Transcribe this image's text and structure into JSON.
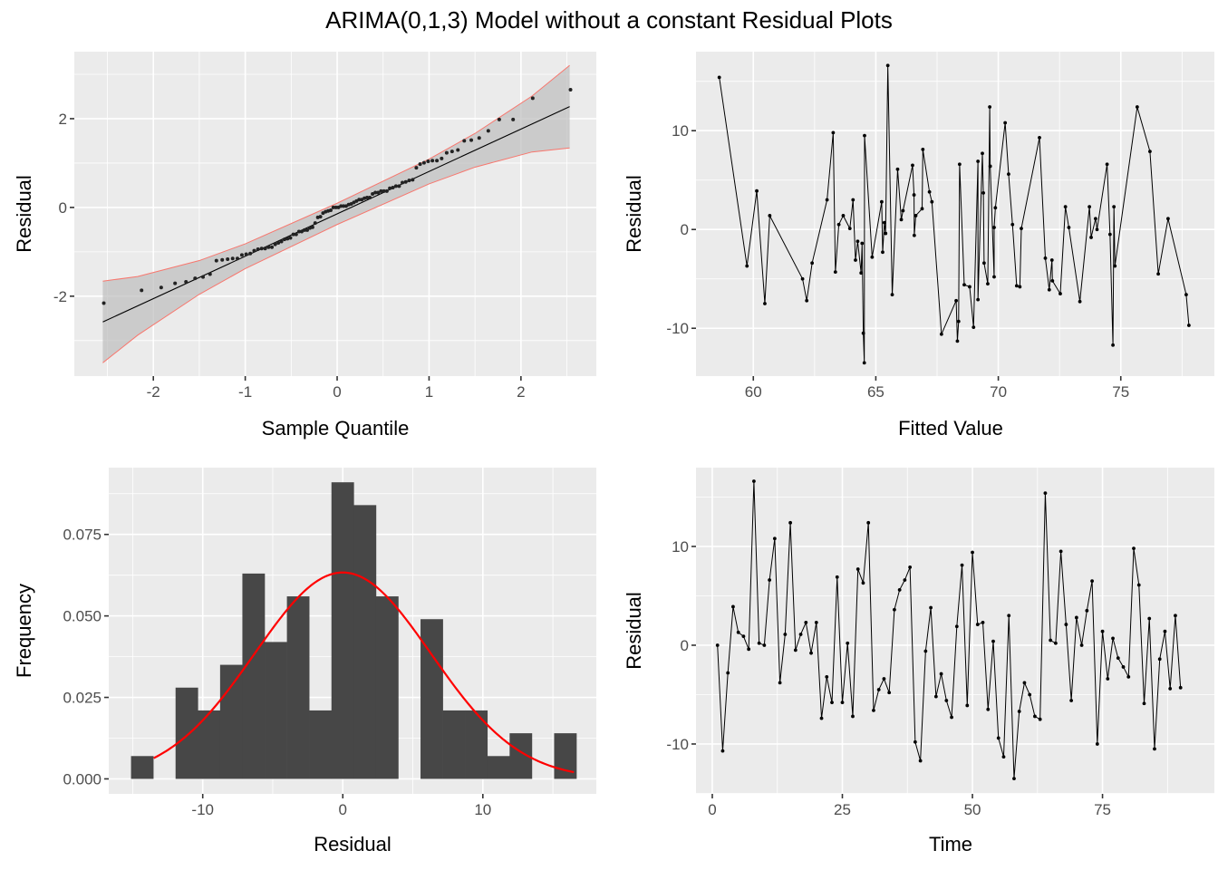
{
  "title": "ARIMA(0,1,3) Model without a constant Residual Plots",
  "chart_data": [
    {
      "id": "qq",
      "type": "scatter",
      "subtype": "qq-plot",
      "xlabel": "Sample Quantile",
      "ylabel": "Residual",
      "xlim": [
        -2.86,
        2.82
      ],
      "ylim": [
        -3.8,
        3.51
      ],
      "xticks": [
        -2,
        -1,
        0,
        1,
        2
      ],
      "xtick_labels": [
        "-2",
        "-1",
        "0",
        "1",
        "2"
      ],
      "yticks": [
        -2,
        0,
        2
      ],
      "ytick_labels": [
        "-2",
        "0",
        "2"
      ],
      "grid": true,
      "points_source": "standardized residuals vs normal theoretical quantiles",
      "standardize_mean": 0.0,
      "standardize_sd": 6.26,
      "reference_line": {
        "slope": 0.955,
        "intercept": -0.145,
        "x_range": [
          -2.55,
          2.53
        ],
        "color": "#000000"
      },
      "confidence_band": {
        "x": [
          -2.55,
          -2.17,
          -1.5,
          -1.0,
          0.0,
          1.0,
          1.5,
          2.12,
          2.53
        ],
        "half_width": [
          0.92,
          0.66,
          0.38,
          0.28,
          0.24,
          0.28,
          0.38,
          0.63,
          0.93
        ],
        "fill": "#bdbdbd",
        "edge_color": "#f8766d"
      }
    },
    {
      "id": "fitted",
      "type": "line",
      "xlabel": "Fitted Value",
      "ylabel": "Residual",
      "xlim": [
        57.66,
        78.82
      ],
      "ylim": [
        -14.84,
        18.0
      ],
      "xticks": [
        60,
        65,
        70,
        75
      ],
      "xtick_labels": [
        "60",
        "65",
        "70",
        "75"
      ],
      "yticks": [
        -10,
        0,
        10
      ],
      "ytick_labels": [
        "-10",
        "0",
        "10"
      ],
      "grid": true,
      "x": [
        58.61,
        59.74,
        60.14,
        60.47,
        60.67,
        62.01,
        62.18,
        62.4,
        63.01,
        63.26,
        63.35,
        63.49,
        63.67,
        63.94,
        64.07,
        64.17,
        64.26,
        64.4,
        64.44,
        64.49,
        64.53,
        64.54,
        64.85,
        65.24,
        65.28,
        65.35,
        65.4,
        65.49,
        65.67,
        65.89,
        66.04,
        66.11,
        66.5,
        66.56,
        66.57,
        66.63,
        66.89,
        66.92,
        67.19,
        67.29,
        67.68,
        68.28,
        68.33,
        68.38,
        68.42,
        68.61,
        68.83,
        68.99,
        69.17,
        69.17,
        69.35,
        69.39,
        69.42,
        69.57,
        69.65,
        69.67,
        69.83,
        69.83,
        69.88,
        70.28,
        70.42,
        70.58,
        70.75,
        70.88,
        70.94,
        71.68,
        71.92,
        72.08,
        72.19,
        72.21,
        72.53,
        72.74,
        72.88,
        73.33,
        73.72,
        73.79,
        73.97,
        74.03,
        74.44,
        74.56,
        74.68,
        74.72,
        74.76,
        75.67,
        76.19,
        76.53,
        76.93,
        77.67,
        77.78
      ],
      "y": [
        15.4,
        -3.7,
        3.9,
        -7.5,
        1.4,
        -5.0,
        -7.2,
        -3.4,
        3.0,
        9.8,
        -4.3,
        0.5,
        1.4,
        0.1,
        3.0,
        -3.1,
        -1.2,
        -4.4,
        -1.4,
        -10.5,
        -13.5,
        9.5,
        -2.8,
        2.8,
        -2.3,
        0.7,
        -0.4,
        16.6,
        -6.6,
        6.1,
        1.0,
        1.9,
        6.5,
        3.5,
        -0.6,
        1.4,
        2.1,
        8.1,
        3.8,
        2.8,
        -10.6,
        -7.2,
        -11.3,
        -9.3,
        6.6,
        -5.6,
        -5.8,
        -9.9,
        6.9,
        -7.1,
        7.7,
        3.7,
        -3.4,
        -5.5,
        12.4,
        6.4,
        -4.8,
        0.2,
        2.2,
        10.8,
        5.6,
        0.5,
        -5.7,
        -5.8,
        0.1,
        9.3,
        -2.9,
        -6.1,
        -3.1,
        -5.2,
        -6.5,
        2.3,
        0.2,
        -7.3,
        2.3,
        -0.8,
        1.1,
        0.0,
        6.6,
        -0.5,
        -11.7,
        2.3,
        -3.7,
        12.4,
        7.9,
        -4.5,
        1.1,
        -6.6,
        -9.7
      ]
    },
    {
      "id": "hist",
      "type": "bar",
      "subtype": "histogram-density",
      "xlabel": "Residual",
      "ylabel": "Frequency",
      "xlim": [
        -16.71,
        18.1
      ],
      "ylim": [
        -0.0046,
        0.0955
      ],
      "xticks": [
        -10,
        0,
        10
      ],
      "xtick_labels": [
        "-10",
        "0",
        "10"
      ],
      "yticks": [
        0.0,
        0.025,
        0.05,
        0.075
      ],
      "ytick_labels": [
        "0.000",
        "0.025",
        "0.050",
        "0.075"
      ],
      "grid": true,
      "bin_start": -15.12,
      "bin_width": 1.59,
      "density": [
        0.007,
        0.0,
        0.028,
        0.021,
        0.035,
        0.063,
        0.042,
        0.056,
        0.021,
        0.091,
        0.084,
        0.056,
        0.0,
        0.049,
        0.021,
        0.021,
        0.007,
        0.014,
        0.0,
        0.014
      ],
      "bar_color": "#474747",
      "normal_curve": {
        "mean": 0.0,
        "sd": 6.3,
        "x_range": [
          -13.5,
          16.5
        ],
        "color": "#ff0000"
      }
    },
    {
      "id": "time",
      "type": "line",
      "xlabel": "Time",
      "ylabel": "Residual",
      "xlim": [
        -3.13,
        96.5
      ],
      "ylim": [
        -15.05,
        17.98
      ],
      "xticks": [
        0,
        25,
        50,
        75
      ],
      "xtick_labels": [
        "0",
        "25",
        "50",
        "75"
      ],
      "yticks": [
        -10,
        0,
        10
      ],
      "ytick_labels": [
        "-10",
        "0",
        "10"
      ],
      "grid": true,
      "x_start": 1,
      "y": [
        0.0,
        -10.7,
        -2.8,
        3.9,
        1.3,
        0.9,
        -0.4,
        16.6,
        0.2,
        0.0,
        6.6,
        10.8,
        -3.8,
        1.1,
        12.4,
        -0.5,
        1.1,
        2.3,
        -0.8,
        2.3,
        -7.4,
        -3.2,
        -5.8,
        6.9,
        -5.8,
        0.2,
        -7.2,
        7.7,
        6.3,
        12.4,
        -6.6,
        -4.5,
        -3.4,
        -4.8,
        3.6,
        5.6,
        6.6,
        7.9,
        -9.8,
        -11.7,
        -0.6,
        3.8,
        -5.2,
        -2.9,
        -5.6,
        -7.3,
        1.9,
        8.1,
        -6.1,
        9.4,
        2.1,
        2.3,
        -6.5,
        0.4,
        -9.4,
        -11.3,
        3.0,
        -13.5,
        -6.7,
        -3.8,
        -5.0,
        -7.2,
        -7.5,
        15.4,
        0.5,
        0.2,
        9.5,
        2.1,
        -5.6,
        2.8,
        0.0,
        3.5,
        6.5,
        -10.0,
        1.4,
        -3.4,
        0.7,
        -1.3,
        -2.2,
        -3.2,
        9.8,
        6.1,
        -5.9,
        2.7,
        -10.5,
        -1.4,
        1.4,
        -4.4,
        3.0,
        -4.3
      ]
    }
  ]
}
